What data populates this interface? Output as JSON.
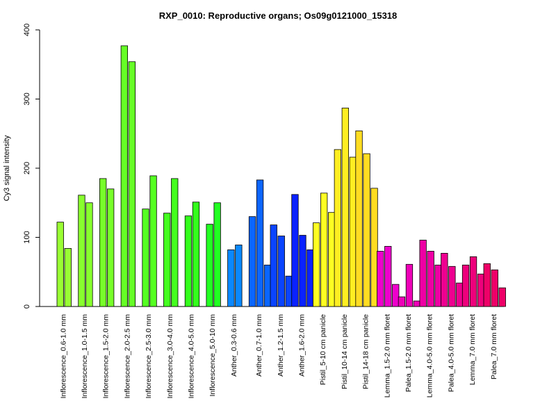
{
  "chart_data": {
    "type": "bar",
    "title": "RXP_0010: Reproductive organs; Os09g0121000_15318",
    "xlabel": "",
    "ylabel": "Cy3 signal intensity",
    "ylim": [
      0,
      400
    ],
    "yticks": [
      0,
      100,
      200,
      300,
      400
    ],
    "grid": false,
    "legend": "none",
    "groups": [
      {
        "label": "Inflorescence_0.6-1.0 mm",
        "color": "#99FF33",
        "values": [
          122,
          84
        ]
      },
      {
        "label": "Inflorescence_1.0-1.5 mm",
        "color": "#88FF2E",
        "values": [
          161,
          150
        ]
      },
      {
        "label": "Inflorescence_1.5-2.0 mm",
        "color": "#77FF2A",
        "values": [
          185,
          170
        ]
      },
      {
        "label": "Inflorescence_2.0-2.5 mm",
        "color": "#66FF26",
        "values": [
          377,
          354
        ]
      },
      {
        "label": "Inflorescence_2.5-3.0 mm",
        "color": "#55FF22",
        "values": [
          141,
          189
        ]
      },
      {
        "label": "Inflorescence_3.0-4.0 mm",
        "color": "#44FF1F",
        "values": [
          135,
          185
        ]
      },
      {
        "label": "Inflorescence_4.0-5.0 mm",
        "color": "#33FF1B",
        "values": [
          131,
          151
        ]
      },
      {
        "label": "Inflorescence_5.0-10 mm",
        "color": "#22FF22",
        "values": [
          119,
          150
        ]
      },
      {
        "label": "Anther_0.3-0.6 mm",
        "color": "#0A88FF",
        "values": [
          82,
          89
        ]
      },
      {
        "label": "Anther_0.7-1.0 mm",
        "color": "#0A66FF",
        "values": [
          130,
          183,
          60
        ]
      },
      {
        "label": "Anther_1.2-1.5 mm",
        "color": "#0A44FF",
        "values": [
          118,
          102,
          44
        ]
      },
      {
        "label": "Anther_1.6-2.0 mm",
        "color": "#0A22FF",
        "values": [
          162,
          103,
          82
        ]
      },
      {
        "label": "Pistil_5-10 cm panicle",
        "color": "#FFFF22",
        "values": [
          121,
          164,
          136
        ]
      },
      {
        "label": "Pistil_10-14 cm panicle",
        "color": "#FFEE22",
        "values": [
          227,
          287,
          216
        ]
      },
      {
        "label": "Pistil_14-18 cm panicle",
        "color": "#FFDD22",
        "values": [
          254,
          221,
          171
        ]
      },
      {
        "label": "Lemma_1.5-2.0 mm floret",
        "color": "#EE00CC",
        "values": [
          80,
          87,
          32
        ]
      },
      {
        "label": "Palea_1.5-2.0 mm floret",
        "color": "#EE00B8",
        "values": [
          14,
          61,
          8
        ]
      },
      {
        "label": "Lemma_4.0-5.0 mm floret",
        "color": "#EE00A4",
        "values": [
          96,
          80,
          60
        ]
      },
      {
        "label": "Palea_4.0-5.0 mm floret",
        "color": "#EE0090",
        "values": [
          77,
          58,
          34
        ]
      },
      {
        "label": "Lemma_7.0 mm floret",
        "color": "#EE007C",
        "values": [
          60,
          72,
          47
        ]
      },
      {
        "label": "Palea_7.0 mm floret",
        "color": "#EE0068",
        "values": [
          62,
          53,
          27
        ]
      }
    ]
  }
}
